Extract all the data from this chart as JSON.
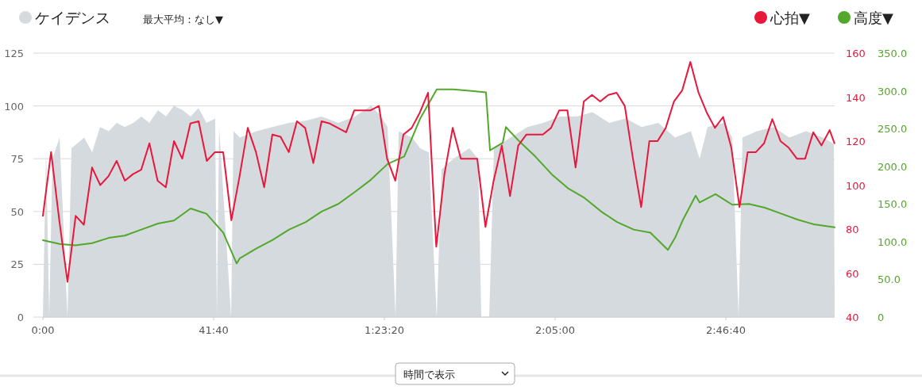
{
  "chart_data": {
    "type": "line",
    "legend": "top",
    "grid": "y",
    "xlim": [
      0,
      11593
    ],
    "xticks": [
      {
        "value": 0,
        "label": "0:00"
      },
      {
        "value": 2500,
        "label": "41:40"
      },
      {
        "value": 5000,
        "label": "1:23:20"
      },
      {
        "value": 7500,
        "label": "2:05:00"
      },
      {
        "value": 10000,
        "label": "2:46:40"
      }
    ],
    "ylim": [
      0,
      125
    ],
    "yticks": [
      0,
      25,
      50,
      75,
      100,
      125
    ],
    "y2lim": [
      40,
      160
    ],
    "y2ticks": [
      40,
      60,
      80,
      100,
      120,
      140,
      160
    ],
    "y3lim": [
      0,
      350
    ],
    "y3ticks": [
      0,
      {
        "value": 50,
        "label": "50.0"
      },
      {
        "value": 100,
        "label": "100.0"
      },
      {
        "value": 150,
        "label": "150.0"
      },
      {
        "value": 200,
        "label": "200.0"
      },
      {
        "value": 250,
        "label": "250.0"
      },
      {
        "value": 300,
        "label": "300.0"
      },
      {
        "value": 350,
        "label": "350.0"
      }
    ],
    "annotations": [
      "最大平均：なし▼",
      "時間で表示"
    ],
    "series": [
      {
        "name": "ケイデンス",
        "type": "area",
        "color": "#d5dadf",
        "axis": "y",
        "x": [
          0,
          47,
          93,
          140,
          244,
          360,
          419,
          605,
          721,
          837,
          965,
          1081,
          1198,
          1326,
          1442,
          1558,
          1686,
          1802,
          1919,
          2047,
          2163,
          2279,
          2395,
          2523,
          2547,
          2581,
          2756,
          2791,
          2884,
          3128,
          3360,
          3605,
          3849,
          4081,
          4326,
          4570,
          4802,
          4930,
          5047,
          5163,
          5209,
          5407,
          5523,
          5651,
          5767,
          5837,
          6012,
          6244,
          6372,
          6419,
          6535,
          6605,
          6849,
          7093,
          7326,
          7570,
          7814,
          8047,
          8291,
          8535,
          8767,
          9012,
          9256,
          9488,
          9616,
          9733,
          9977,
          10093,
          10186,
          10244,
          10454,
          10698,
          10930,
          11174,
          11419,
          11582,
          11593
        ],
        "values": [
          0,
          80,
          0,
          75,
          85,
          0,
          80,
          85,
          78,
          90,
          88,
          92,
          90,
          92,
          95,
          92,
          98,
          95,
          100,
          98,
          95,
          99,
          92,
          94,
          0,
          90,
          0,
          88,
          85,
          88,
          90,
          92,
          93,
          95,
          92,
          95,
          100,
          96,
          90,
          0,
          88,
          85,
          80,
          78,
          0,
          70,
          75,
          80,
          75,
          0,
          0,
          80,
          85,
          90,
          92,
          95,
          95,
          97,
          92,
          94,
          90,
          92,
          85,
          88,
          75,
          90,
          92,
          85,
          0,
          85,
          88,
          90,
          85,
          88,
          85,
          82,
          0
        ]
      },
      {
        "name": "心拍▼",
        "color": "#e8173c",
        "axis": "y2",
        "x": [
          0,
          120,
          240,
          360,
          480,
          600,
          720,
          840,
          960,
          1080,
          1200,
          1320,
          1440,
          1560,
          1680,
          1800,
          1920,
          2040,
          2160,
          2280,
          2400,
          2520,
          2640,
          2760,
          2880,
          3000,
          3120,
          3240,
          3360,
          3480,
          3600,
          3720,
          3840,
          3960,
          4080,
          4200,
          4320,
          4440,
          4560,
          4680,
          4800,
          4920,
          5040,
          5160,
          5280,
          5400,
          5520,
          5640,
          5760,
          5880,
          6000,
          6120,
          6240,
          6360,
          6480,
          6600,
          6720,
          6840,
          6960,
          7080,
          7200,
          7320,
          7440,
          7560,
          7680,
          7800,
          7920,
          8040,
          8160,
          8280,
          8400,
          8520,
          8640,
          8760,
          8880,
          9000,
          9120,
          9240,
          9360,
          9480,
          9600,
          9720,
          9840,
          9960,
          10080,
          10200,
          10320,
          10440,
          10560,
          10680,
          10800,
          10920,
          11040,
          11160,
          11280,
          11400,
          11520,
          11590
        ],
        "values": [
          86,
          115,
          84,
          56,
          86,
          82,
          108,
          100,
          104,
          111,
          102,
          105,
          107,
          119,
          102,
          99,
          120,
          112,
          128,
          129,
          111,
          115,
          115,
          84,
          104,
          126,
          115,
          99,
          123,
          122,
          115,
          129,
          126,
          110,
          129,
          128,
          126,
          124,
          134,
          134,
          134,
          136,
          112,
          102,
          123,
          126,
          133,
          142,
          72,
          105,
          126,
          112,
          112,
          112,
          81,
          102,
          118,
          95,
          118,
          123,
          123,
          123,
          126,
          134,
          134,
          108,
          138,
          141,
          138,
          141,
          142,
          136,
          112,
          90,
          120,
          120,
          126,
          138,
          143,
          156,
          142,
          133,
          126,
          131,
          117,
          90,
          115,
          115,
          119,
          130,
          120,
          117,
          112,
          112,
          124,
          118,
          125,
          119
        ]
      },
      {
        "name": "高度▼",
        "type": "line",
        "color": "#52a82a",
        "axis": "y3",
        "x": [
          0,
          244,
          477,
          721,
          965,
          1198,
          1442,
          1686,
          1919,
          2163,
          2395,
          2640,
          2837,
          2884,
          3128,
          3360,
          3605,
          3849,
          4081,
          4326,
          4570,
          4802,
          5047,
          5291,
          5523,
          5767,
          6012,
          6244,
          6488,
          6547,
          6733,
          6779,
          6965,
          7209,
          7454,
          7686,
          7930,
          8174,
          8407,
          8651,
          8895,
          9151,
          9256,
          9372,
          9558,
          9616,
          9849,
          10093,
          10337,
          10570,
          10814,
          11058,
          11290,
          11593
        ],
        "values": [
          102,
          97,
          95,
          98,
          105,
          108,
          116,
          124,
          128,
          144,
          137,
          112,
          71,
          78,
          91,
          102,
          116,
          126,
          140,
          150,
          166,
          182,
          203,
          213,
          263,
          302,
          302,
          300,
          298,
          221,
          231,
          252,
          234,
          213,
          189,
          171,
          158,
          140,
          126,
          116,
          112,
          89,
          105,
          129,
          161,
          152,
          163,
          149,
          150,
          145,
          137,
          129,
          123,
          119
        ]
      }
    ]
  }
}
